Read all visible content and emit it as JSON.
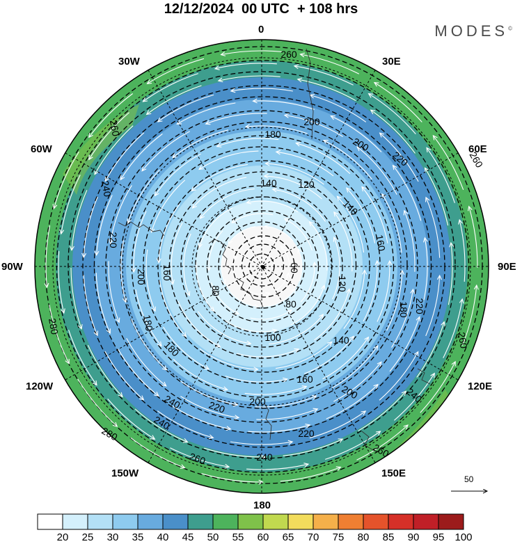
{
  "title": "12/12/2024  00 UTC  + 108 hrs",
  "brand": "MODES",
  "brand_mark": "©",
  "longitude_labels": {
    "north": "0",
    "n30e": "30E",
    "n60e": "60E",
    "east": "90E",
    "s120e": "120E",
    "s150e": "150E",
    "south": "180",
    "s150w": "150W",
    "s120w": "120W",
    "west": "90W",
    "n60w": "60W",
    "n30w": "30W"
  },
  "contour_labels": [
    "60",
    "80",
    "80",
    "100",
    "120",
    "120",
    "140",
    "140",
    "140",
    "160",
    "160",
    "160",
    "180",
    "180",
    "180",
    "180",
    "200",
    "200",
    "200",
    "200",
    "200",
    "220",
    "220",
    "220",
    "220",
    "220",
    "240",
    "240",
    "240",
    "240",
    "240",
    "260",
    "260",
    "260",
    "260",
    "260",
    "260",
    "280",
    "280"
  ],
  "colorbar": {
    "labels": [
      "20",
      "25",
      "30",
      "35",
      "40",
      "45",
      "50",
      "55",
      "60",
      "65",
      "70",
      "75",
      "80",
      "85",
      "90",
      "95",
      "100"
    ],
    "colors": [
      "#ffffff",
      "#d4f0fc",
      "#b3e0f6",
      "#8ecbef",
      "#68abdf",
      "#4a8fc9",
      "#3e9e8e",
      "#4db35c",
      "#7fc24a",
      "#c1d94f",
      "#f2dc5c",
      "#f5b04a",
      "#ef7f32",
      "#e5532b",
      "#d63028",
      "#c01f27",
      "#9c1b1b"
    ]
  },
  "reference_vector": {
    "label": "50"
  }
}
